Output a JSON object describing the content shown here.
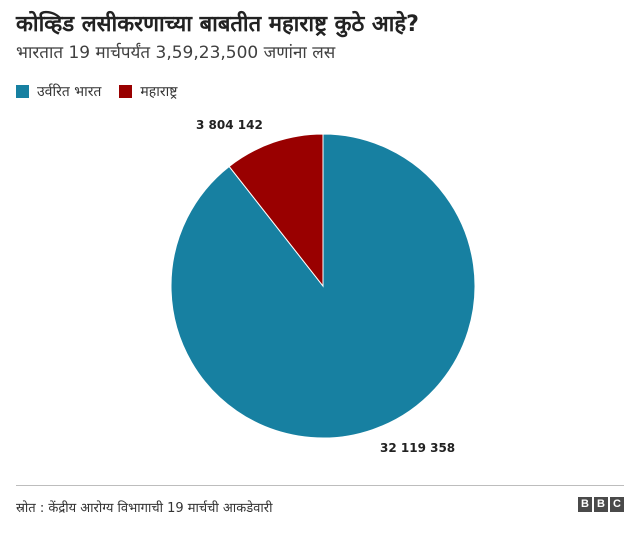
{
  "header": {
    "title": "कोव्हिड लसीकरणाच्या बाबतीत महाराष्ट्र कुठे आहे?",
    "subtitle": "भारतात 19 मार्चपर्यंत 3,59,23,500 जणांना लस"
  },
  "footer": {
    "source": "स्रोत : केंद्रीय आरोग्य विभागाची 19 मार्चची आकडेवारी",
    "logo_letters": [
      "B",
      "B",
      "C"
    ]
  },
  "chart_data": {
    "type": "pie",
    "title": "कोव्हिड लसीकरणाच्या बाबतीत महाराष्ट्र कुठे आहे?",
    "subtitle": "भारतात 19 मार्चपर्यंत 3,59,23,500 जणांना लस",
    "legend_position": "top-left",
    "slices": [
      {
        "label": "उर्वरित भारत",
        "value": 32119358,
        "value_label": "32 119 358",
        "color": "#1780a1"
      },
      {
        "label": "महाराष्ट्र",
        "value": 3804142,
        "value_label": "3 804 142",
        "color": "#990000"
      }
    ]
  }
}
